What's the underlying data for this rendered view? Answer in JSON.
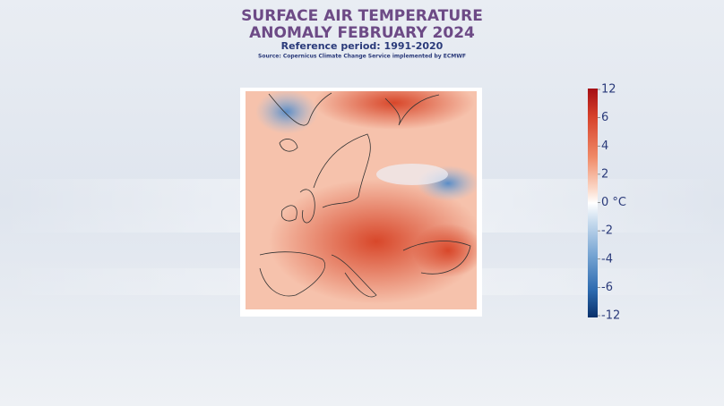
{
  "header": {
    "title_lines": [
      "SURFACE AIR TEMPERATURE",
      "ANOMALY FEBRUARY 2024"
    ],
    "subtitle": "Reference period: 1991-2020",
    "source": "Source: Copernicus Climate Change Service implemented by ECMWF"
  },
  "colorbar": {
    "ticks": [
      12,
      6,
      4,
      2,
      {
        "value": 0,
        "label": "0 °C"
      },
      -2,
      -4,
      -6,
      -12
    ]
  }
}
